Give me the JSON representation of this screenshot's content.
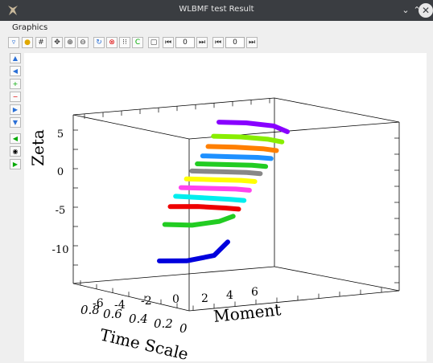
{
  "window": {
    "title": "WLBMF test Result"
  },
  "menu": {
    "graphics": "Graphics"
  },
  "toolbar": {
    "field1": "0",
    "field2": "0"
  },
  "plot": {
    "zlabel": "Zeta",
    "xlabel": "Moment",
    "ylabel": "Time Scale",
    "zticks": [
      "5",
      "0",
      "-5",
      "-10"
    ],
    "xticks": [
      "2",
      "4",
      "6"
    ],
    "yticks": [
      "0.8",
      "0.6",
      "0.4",
      "0.2",
      "0"
    ],
    "negticks": [
      "-6",
      "-4",
      "-2",
      "0"
    ]
  },
  "chart_data": {
    "type": "line",
    "title": "",
    "xlabel": "Moment",
    "ylabel": "Time Scale",
    "zlabel": "Zeta",
    "series": [
      {
        "color": "#0000dd",
        "points": [
          [
            -6,
            -10.3
          ],
          [
            -4,
            -10.4
          ],
          [
            -2,
            -9.8
          ],
          [
            -1,
            -8.1
          ]
        ]
      },
      {
        "color": "#22cc22",
        "points": [
          [
            -6,
            -5.8
          ],
          [
            -4,
            -6.0
          ],
          [
            -2,
            -5.6
          ],
          [
            -1,
            -5.0
          ]
        ]
      },
      {
        "color": "#ee0000",
        "points": [
          [
            -6,
            -3.7
          ],
          [
            -4,
            -3.8
          ],
          [
            -2,
            -4.1
          ],
          [
            -1,
            -4.3
          ]
        ]
      },
      {
        "color": "#00eeee",
        "points": [
          [
            -6,
            -2.6
          ],
          [
            -4,
            -2.9
          ],
          [
            -2,
            -3.2
          ],
          [
            -1,
            -3.4
          ]
        ]
      },
      {
        "color": "#ff44ee",
        "points": [
          [
            -6,
            -1.7
          ],
          [
            -4,
            -1.9
          ],
          [
            -2,
            -2.1
          ],
          [
            -1,
            -2.3
          ]
        ]
      },
      {
        "color": "#ffff00",
        "points": [
          [
            -6,
            -0.8
          ],
          [
            -4,
            -1.0
          ],
          [
            -2,
            -1.2
          ],
          [
            -1,
            -1.4
          ]
        ]
      },
      {
        "color": "#888888",
        "points": [
          [
            -6,
            0.0
          ],
          [
            -4,
            -0.2
          ],
          [
            -2,
            -0.4
          ],
          [
            -1,
            -0.6
          ]
        ]
      },
      {
        "color": "#22cc22",
        "points": [
          [
            -6,
            0.7
          ],
          [
            -4,
            0.5
          ],
          [
            -2,
            0.3
          ],
          [
            -1,
            0.1
          ]
        ]
      },
      {
        "color": "#1e90ff",
        "points": [
          [
            -6,
            1.5
          ],
          [
            -4,
            1.3
          ],
          [
            -2,
            1.1
          ],
          [
            -1,
            0.9
          ]
        ]
      },
      {
        "color": "#ff7f00",
        "points": [
          [
            -6,
            2.5
          ],
          [
            -4,
            2.3
          ],
          [
            -2,
            2.0
          ],
          [
            -1,
            1.7
          ]
        ]
      },
      {
        "color": "#88ee00",
        "points": [
          [
            -6,
            3.6
          ],
          [
            -4,
            3.4
          ],
          [
            -2,
            3.0
          ],
          [
            -1,
            2.6
          ]
        ]
      },
      {
        "color": "#8800ff",
        "points": [
          [
            -6,
            5.2
          ],
          [
            -4,
            5.0
          ],
          [
            -2,
            4.5
          ],
          [
            -1,
            3.7
          ]
        ]
      }
    ]
  }
}
